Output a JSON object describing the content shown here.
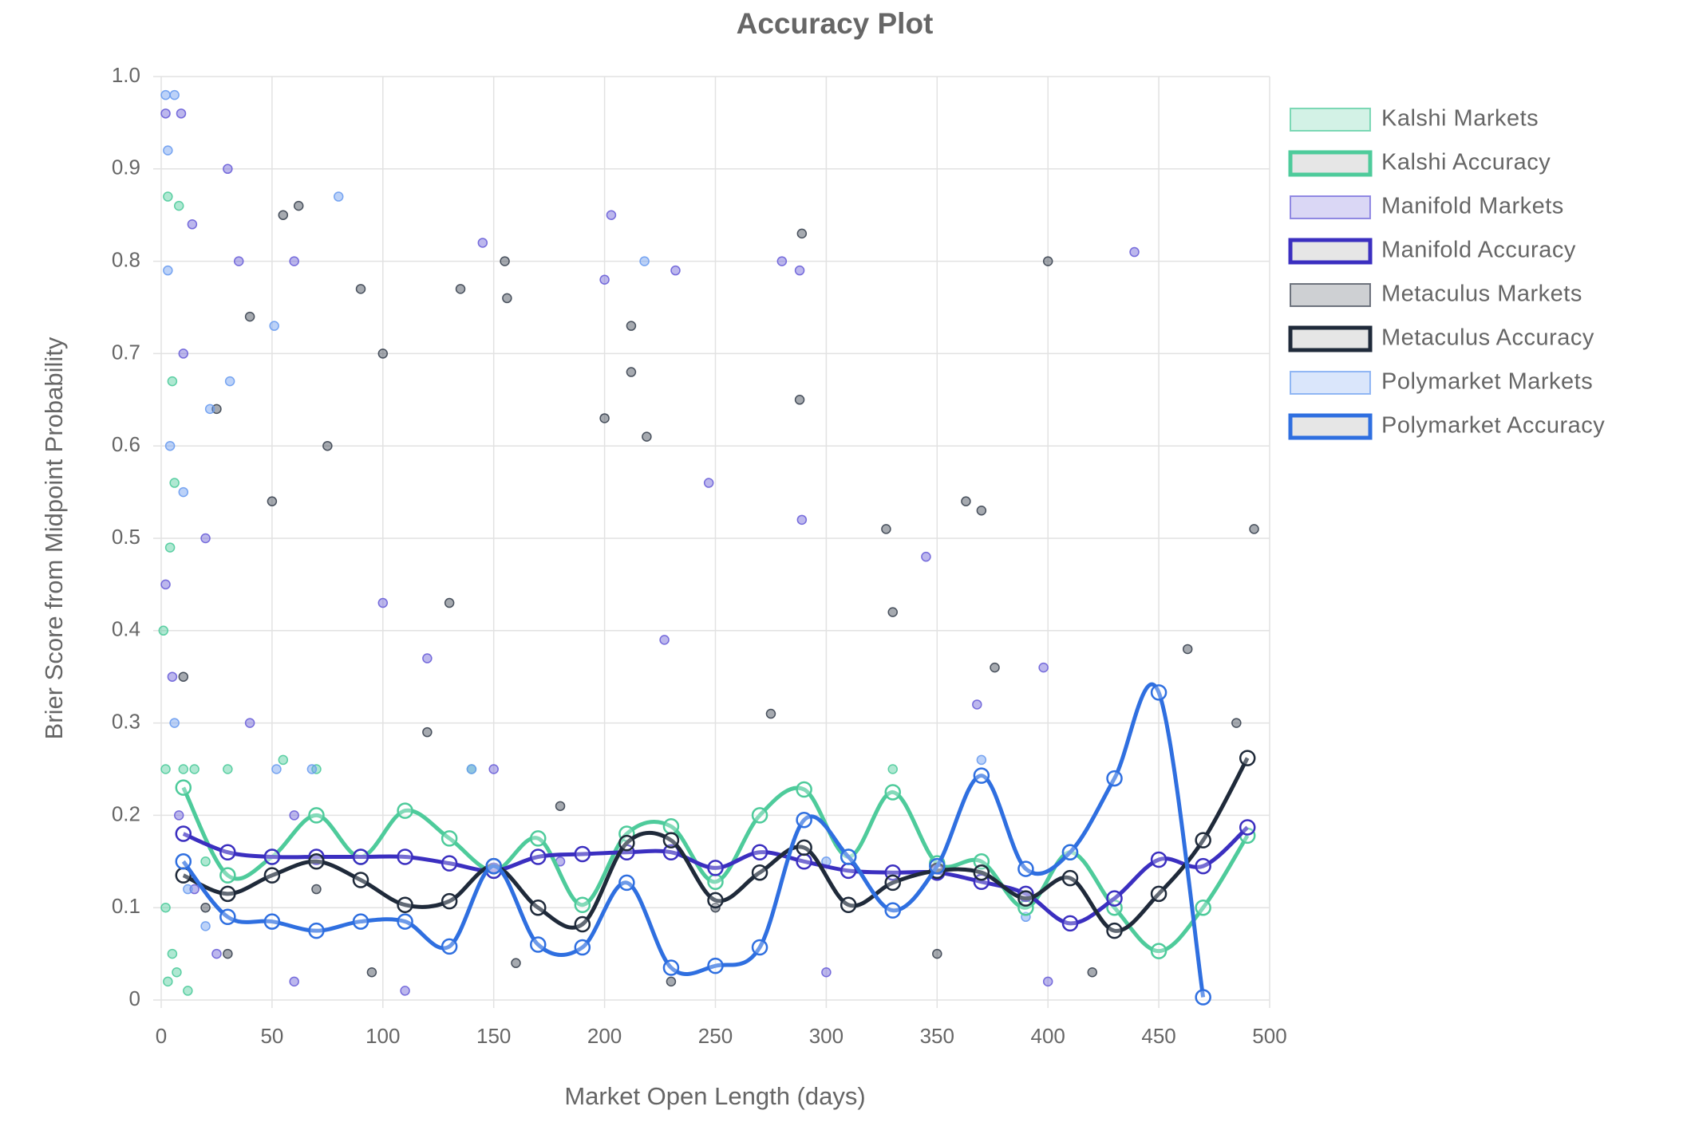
{
  "chart_data": {
    "type": "scatter",
    "title": "Accuracy Plot",
    "x_label": "Market Open Length (days)",
    "y_label": "Brier Score from Midpoint Probability",
    "xlim": [
      0,
      500
    ],
    "xticks": [
      0,
      50,
      100,
      150,
      200,
      250,
      300,
      350,
      400,
      450,
      500
    ],
    "ylim": [
      0,
      1
    ],
    "yticks": [
      0,
      0.1,
      0.2,
      0.3,
      0.4,
      0.5,
      0.6,
      0.7,
      0.8,
      0.9,
      {
        "value": 1,
        "label": "1.0"
      }
    ],
    "grid": true,
    "legend": "right",
    "series": [
      {
        "name": "Kalshi Markets",
        "type": "scatter",
        "color": "#4ecb9b",
        "x": [
          2,
          3,
          5,
          6,
          4,
          8,
          2,
          5,
          10,
          15,
          30,
          140,
          70,
          3,
          7,
          55,
          330,
          20,
          1,
          12
        ],
        "values": [
          0.25,
          0.87,
          0.67,
          0.56,
          0.49,
          0.86,
          0.1,
          0.05,
          0.25,
          0.25,
          0.25,
          0.25,
          0.25,
          0.02,
          0.03,
          0.26,
          0.25,
          0.15,
          0.4,
          0.01
        ]
      },
      {
        "name": "Kalshi Accuracy",
        "type": "line",
        "color": "#4ecb9b",
        "x": [
          10,
          30,
          50,
          70,
          90,
          110,
          130,
          150,
          170,
          190,
          210,
          230,
          250,
          270,
          290,
          310,
          330,
          350,
          370,
          390,
          410,
          430,
          450,
          470,
          490
        ],
        "values": [
          0.23,
          0.135,
          0.155,
          0.2,
          0.155,
          0.205,
          0.175,
          0.14,
          0.175,
          0.103,
          0.18,
          0.188,
          0.128,
          0.2,
          0.228,
          0.155,
          0.225,
          0.148,
          0.15,
          0.1,
          0.16,
          0.1,
          0.053,
          0.1,
          0.178
        ]
      },
      {
        "name": "Manifold Markets",
        "type": "scatter",
        "color": "#6a5fd8",
        "x": [
          2,
          9,
          14,
          30,
          35,
          60,
          145,
          200,
          203,
          232,
          280,
          288,
          439,
          289,
          345,
          398,
          10,
          20,
          40,
          60,
          100,
          120,
          150,
          180,
          2,
          5,
          8,
          15,
          25,
          60,
          110,
          300,
          400,
          247,
          227,
          368
        ],
        "values": [
          0.96,
          0.96,
          0.84,
          0.9,
          0.8,
          0.8,
          0.82,
          0.78,
          0.85,
          0.79,
          0.8,
          0.79,
          0.81,
          0.52,
          0.48,
          0.36,
          0.7,
          0.5,
          0.3,
          0.2,
          0.43,
          0.37,
          0.25,
          0.15,
          0.45,
          0.35,
          0.2,
          0.12,
          0.05,
          0.02,
          0.01,
          0.03,
          0.02,
          0.56,
          0.39,
          0.32
        ]
      },
      {
        "name": "Manifold Accuracy",
        "type": "line",
        "color": "#3b2fc0",
        "x": [
          10,
          30,
          50,
          70,
          90,
          110,
          130,
          150,
          170,
          190,
          210,
          230,
          250,
          270,
          290,
          310,
          330,
          350,
          370,
          390,
          410,
          430,
          450,
          470,
          490
        ],
        "values": [
          0.18,
          0.16,
          0.155,
          0.155,
          0.155,
          0.155,
          0.148,
          0.14,
          0.155,
          0.158,
          0.16,
          0.16,
          0.143,
          0.16,
          0.15,
          0.14,
          0.138,
          0.138,
          0.128,
          0.115,
          0.083,
          0.11,
          0.152,
          0.145,
          0.187
        ]
      },
      {
        "name": "Metaculus Markets",
        "type": "scatter",
        "color": "#3a4250",
        "x": [
          55,
          62,
          100,
          135,
          155,
          156,
          200,
          212,
          212,
          219,
          289,
          288,
          400,
          493,
          327,
          330,
          363,
          370,
          463,
          485,
          50,
          75,
          90,
          25,
          40,
          120,
          180,
          250,
          350,
          420,
          10,
          20,
          30,
          70,
          95,
          160,
          230,
          275,
          376,
          130
        ],
        "values": [
          0.85,
          0.86,
          0.7,
          0.77,
          0.8,
          0.76,
          0.63,
          0.73,
          0.68,
          0.61,
          0.83,
          0.65,
          0.8,
          0.51,
          0.51,
          0.42,
          0.54,
          0.53,
          0.38,
          0.3,
          0.54,
          0.6,
          0.77,
          0.64,
          0.74,
          0.29,
          0.21,
          0.1,
          0.05,
          0.03,
          0.35,
          0.1,
          0.05,
          0.12,
          0.03,
          0.04,
          0.02,
          0.31,
          0.36,
          0.43
        ]
      },
      {
        "name": "Metaculus Accuracy",
        "type": "line",
        "color": "#1f2a3a",
        "x": [
          10,
          30,
          50,
          70,
          90,
          110,
          130,
          150,
          170,
          190,
          210,
          230,
          250,
          270,
          290,
          310,
          330,
          350,
          370,
          390,
          410,
          430,
          450,
          470,
          490
        ],
        "values": [
          0.135,
          0.115,
          0.135,
          0.15,
          0.13,
          0.103,
          0.107,
          0.145,
          0.1,
          0.082,
          0.17,
          0.173,
          0.108,
          0.138,
          0.165,
          0.103,
          0.127,
          0.14,
          0.138,
          0.11,
          0.132,
          0.075,
          0.115,
          0.173,
          0.262
        ]
      },
      {
        "name": "Polymarket Markets",
        "type": "scatter",
        "color": "#6a9cf0",
        "x": [
          2,
          3,
          6,
          80,
          218,
          51,
          31,
          22,
          3,
          4,
          10,
          68,
          52,
          370,
          300,
          390,
          140,
          20,
          6,
          12
        ],
        "values": [
          0.98,
          0.92,
          0.98,
          0.87,
          0.8,
          0.73,
          0.67,
          0.64,
          0.79,
          0.6,
          0.55,
          0.25,
          0.25,
          0.26,
          0.15,
          0.09,
          0.25,
          0.08,
          0.3,
          0.12
        ]
      },
      {
        "name": "Polymarket Accuracy",
        "type": "line",
        "color": "#2f6fe0",
        "x": [
          10,
          30,
          50,
          70,
          90,
          110,
          130,
          150,
          170,
          190,
          210,
          230,
          250,
          270,
          290,
          310,
          330,
          350,
          370,
          390,
          410,
          430,
          450,
          470
        ],
        "values": [
          0.15,
          0.09,
          0.085,
          0.075,
          0.085,
          0.085,
          0.058,
          0.145,
          0.06,
          0.057,
          0.127,
          0.035,
          0.037,
          0.057,
          0.195,
          0.155,
          0.097,
          0.145,
          0.243,
          0.142,
          0.16,
          0.24,
          0.333,
          0.003
        ]
      }
    ]
  }
}
